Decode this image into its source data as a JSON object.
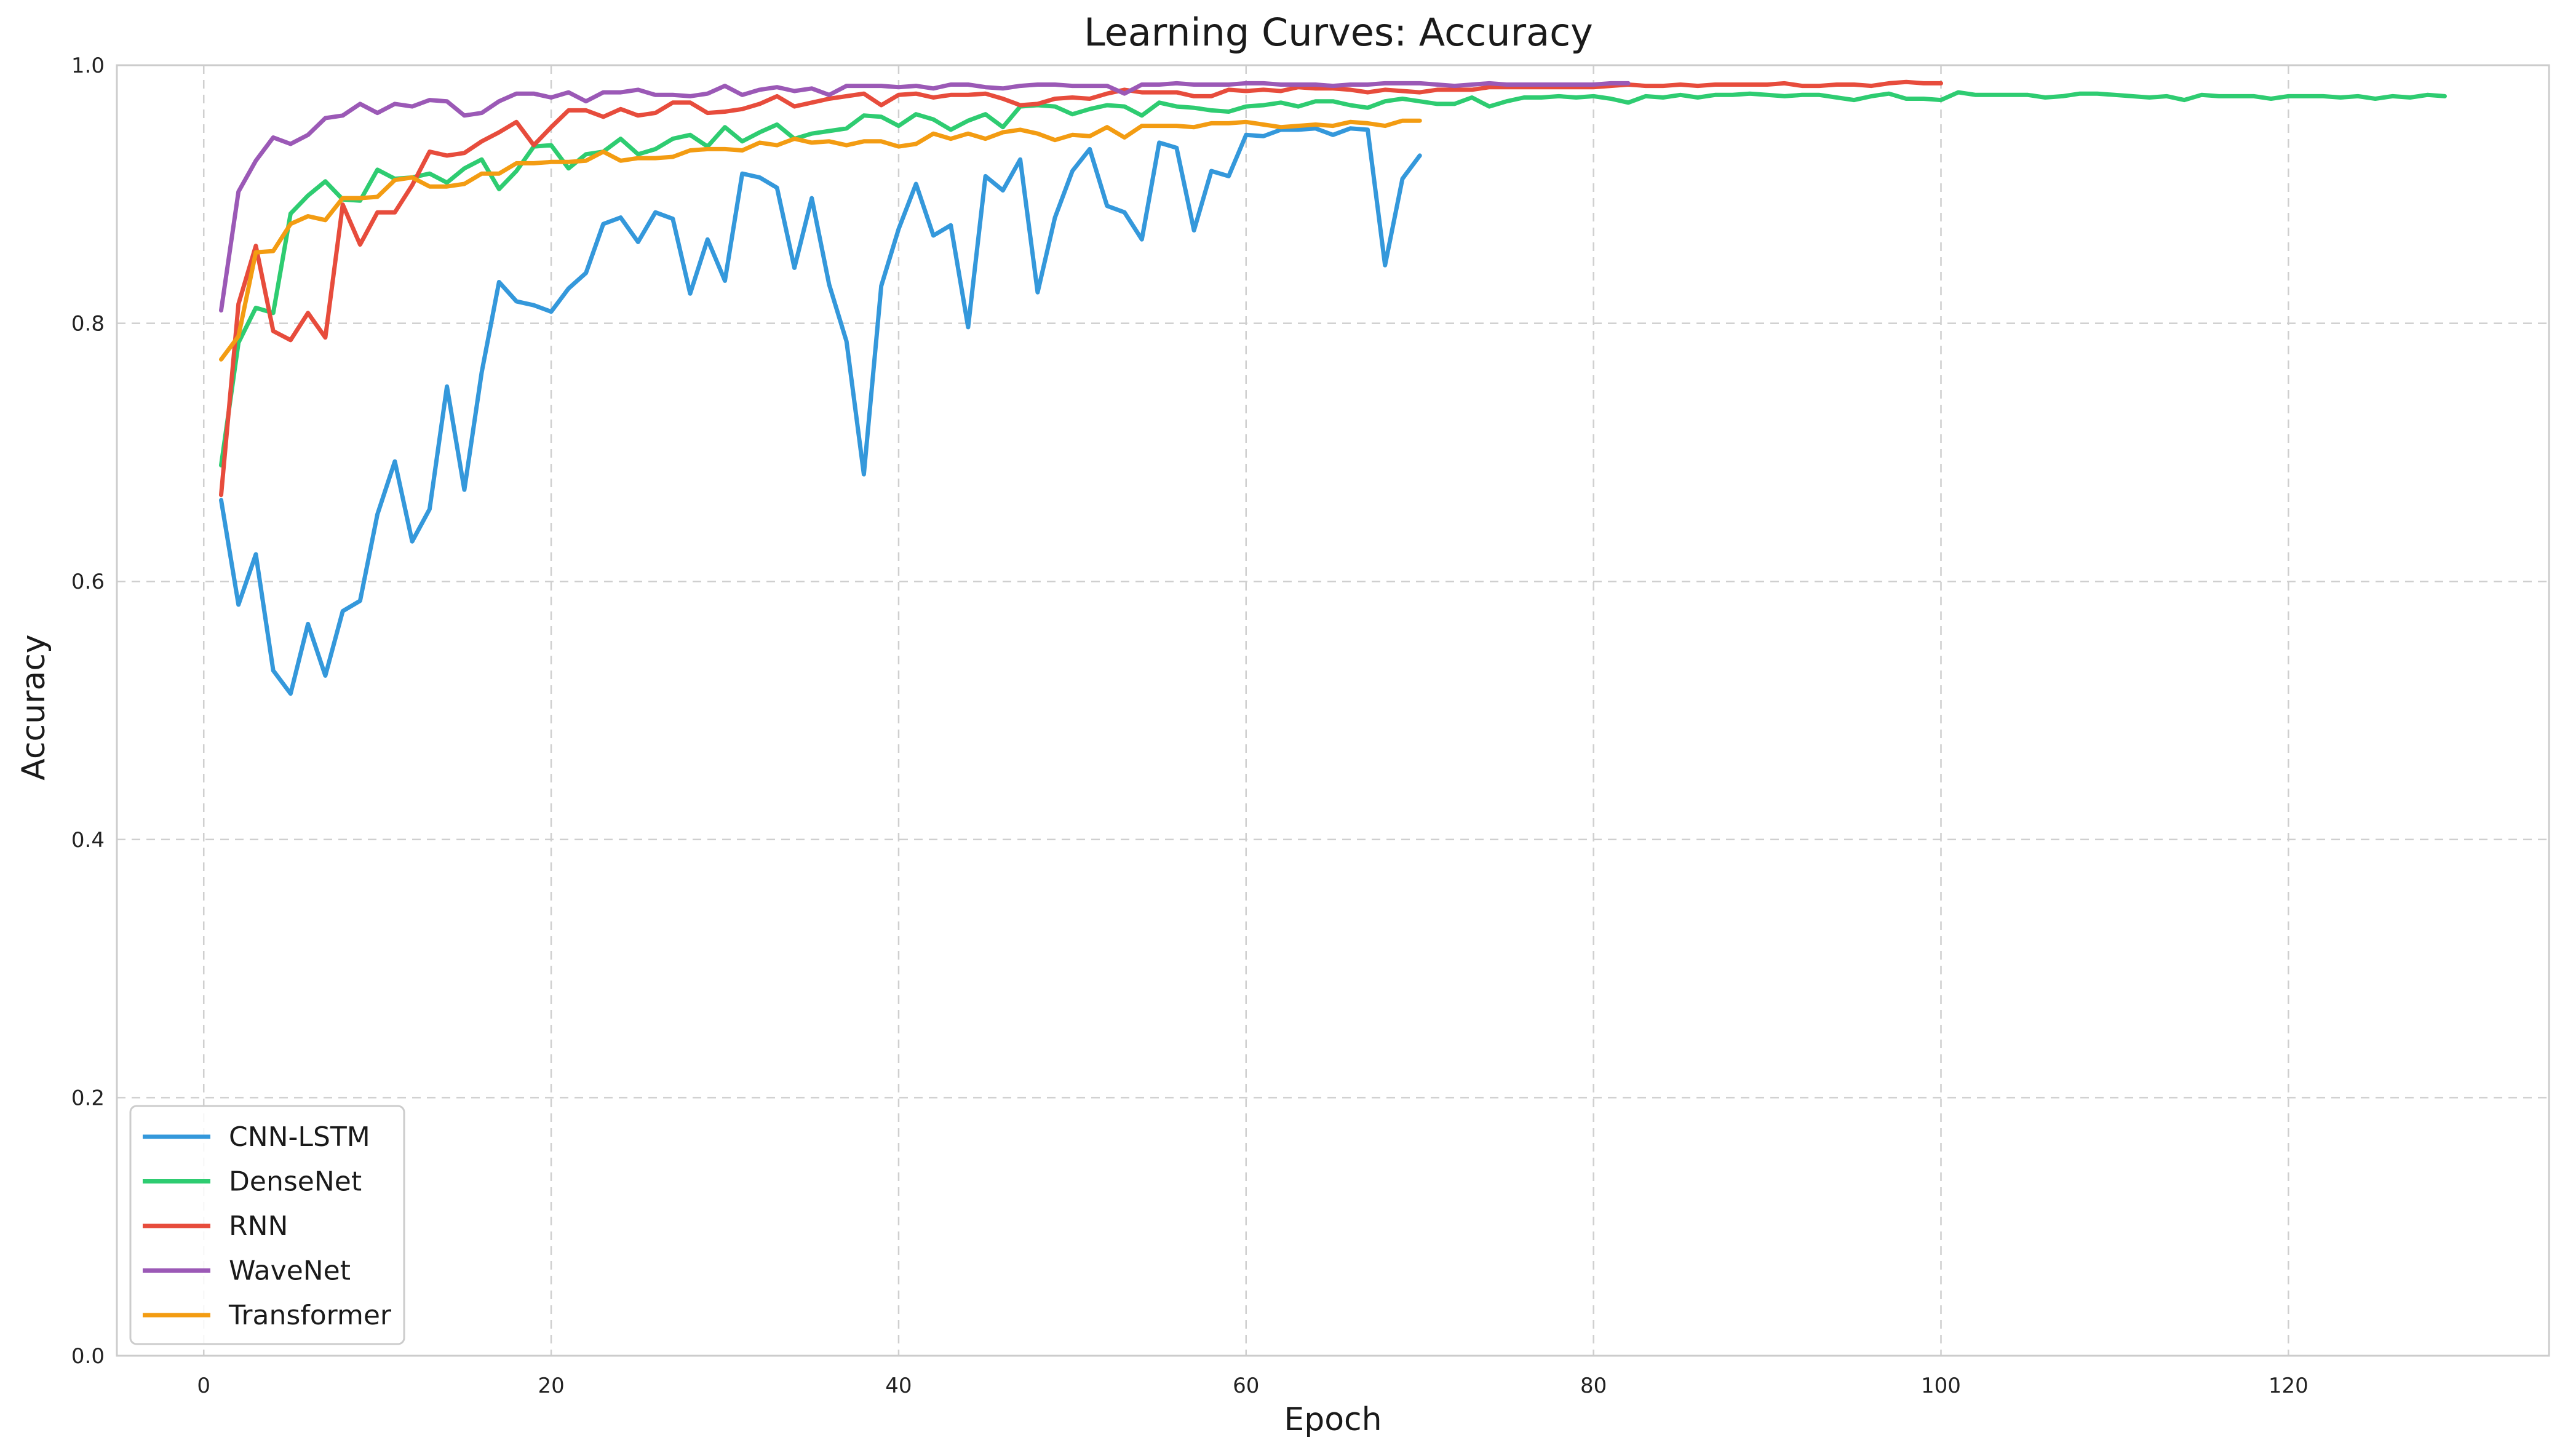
{
  "chart_data": {
    "type": "line",
    "title": "Learning Curves: Accuracy",
    "xlabel": "Epoch",
    "ylabel": "Accuracy",
    "xlim": [
      -5,
      135
    ],
    "ylim": [
      0,
      1.0
    ],
    "xticks": [
      0,
      20,
      40,
      60,
      80,
      100,
      120
    ],
    "yticks": [
      0.0,
      0.2,
      0.4,
      0.6,
      0.8,
      1.0
    ],
    "xtick_labels": [
      "0",
      "20",
      "40",
      "60",
      "80",
      "100",
      "120"
    ],
    "ytick_labels": [
      "0.0",
      "0.2",
      "0.4",
      "0.6",
      "0.8",
      "1.0"
    ],
    "grid": true,
    "legend_position": "lower-left",
    "series": [
      {
        "name": "CNN-LSTM",
        "color": "#3498db",
        "x_start": 1,
        "values": [
          0.663,
          0.582,
          0.621,
          0.531,
          0.513,
          0.567,
          0.527,
          0.577,
          0.585,
          0.652,
          0.693,
          0.631,
          0.656,
          0.751,
          0.671,
          0.762,
          0.832,
          0.817,
          0.814,
          0.809,
          0.827,
          0.839,
          0.877,
          0.882,
          0.863,
          0.886,
          0.881,
          0.823,
          0.865,
          0.833,
          0.916,
          0.913,
          0.905,
          0.843,
          0.897,
          0.83,
          0.786,
          0.683,
          0.829,
          0.873,
          0.908,
          0.868,
          0.876,
          0.797,
          0.914,
          0.903,
          0.927,
          0.824,
          0.882,
          0.918,
          0.935,
          0.891,
          0.886,
          0.865,
          0.94,
          0.936,
          0.872,
          0.918,
          0.914,
          0.946,
          0.945,
          0.95,
          0.95,
          0.951,
          0.946,
          0.951,
          0.95,
          0.845,
          0.912,
          0.93
        ]
      },
      {
        "name": "DenseNet",
        "color": "#2ecc71",
        "x_start": 1,
        "values": [
          0.69,
          0.785,
          0.812,
          0.808,
          0.885,
          0.899,
          0.91,
          0.896,
          0.895,
          0.919,
          0.912,
          0.913,
          0.916,
          0.909,
          0.92,
          0.927,
          0.904,
          0.918,
          0.937,
          0.938,
          0.92,
          0.931,
          0.933,
          0.943,
          0.931,
          0.935,
          0.943,
          0.946,
          0.937,
          0.952,
          0.941,
          0.948,
          0.954,
          0.943,
          0.947,
          0.949,
          0.951,
          0.961,
          0.96,
          0.953,
          0.962,
          0.958,
          0.95,
          0.957,
          0.962,
          0.952,
          0.968,
          0.969,
          0.968,
          0.962,
          0.966,
          0.969,
          0.968,
          0.961,
          0.971,
          0.968,
          0.967,
          0.965,
          0.964,
          0.968,
          0.969,
          0.971,
          0.968,
          0.972,
          0.972,
          0.969,
          0.967,
          0.972,
          0.974,
          0.972,
          0.97,
          0.97,
          0.975,
          0.968,
          0.972,
          0.975,
          0.975,
          0.976,
          0.975,
          0.976,
          0.974,
          0.971,
          0.976,
          0.975,
          0.977,
          0.975,
          0.977,
          0.977,
          0.978,
          0.977,
          0.976,
          0.977,
          0.977,
          0.975,
          0.973,
          0.976,
          0.978,
          0.974,
          0.974,
          0.973,
          0.979,
          0.977,
          0.977,
          0.977,
          0.977,
          0.975,
          0.976,
          0.978,
          0.978,
          0.977,
          0.976,
          0.975,
          0.976,
          0.973,
          0.977,
          0.976,
          0.976,
          0.976,
          0.974,
          0.976,
          0.976,
          0.976,
          0.975,
          0.976,
          0.974,
          0.976,
          0.975,
          0.977,
          0.976
        ]
      },
      {
        "name": "RNN",
        "color": "#e74c3c",
        "x_start": 1,
        "values": [
          0.667,
          0.815,
          0.86,
          0.794,
          0.787,
          0.808,
          0.789,
          0.892,
          0.861,
          0.886,
          0.886,
          0.907,
          0.933,
          0.93,
          0.932,
          0.941,
          0.948,
          0.956,
          0.938,
          0.952,
          0.965,
          0.965,
          0.96,
          0.966,
          0.961,
          0.963,
          0.971,
          0.971,
          0.963,
          0.964,
          0.966,
          0.97,
          0.976,
          0.968,
          0.971,
          0.974,
          0.976,
          0.978,
          0.969,
          0.977,
          0.978,
          0.975,
          0.977,
          0.977,
          0.978,
          0.974,
          0.969,
          0.97,
          0.974,
          0.975,
          0.974,
          0.978,
          0.981,
          0.979,
          0.979,
          0.979,
          0.976,
          0.976,
          0.981,
          0.98,
          0.981,
          0.98,
          0.983,
          0.982,
          0.982,
          0.981,
          0.979,
          0.981,
          0.98,
          0.979,
          0.981,
          0.981,
          0.981,
          0.983,
          0.983,
          0.983,
          0.983,
          0.983,
          0.983,
          0.983,
          0.984,
          0.985,
          0.984,
          0.984,
          0.985,
          0.984,
          0.985,
          0.985,
          0.985,
          0.985,
          0.986,
          0.984,
          0.984,
          0.985,
          0.985,
          0.984,
          0.986,
          0.987,
          0.986,
          0.986
        ]
      },
      {
        "name": "WaveNet",
        "color": "#9b59b6",
        "x_start": 1,
        "values": [
          0.81,
          0.902,
          0.926,
          0.944,
          0.939,
          0.946,
          0.959,
          0.961,
          0.97,
          0.963,
          0.97,
          0.968,
          0.973,
          0.972,
          0.961,
          0.963,
          0.972,
          0.978,
          0.978,
          0.975,
          0.979,
          0.972,
          0.979,
          0.979,
          0.981,
          0.977,
          0.977,
          0.976,
          0.978,
          0.984,
          0.977,
          0.981,
          0.983,
          0.98,
          0.982,
          0.977,
          0.984,
          0.984,
          0.984,
          0.983,
          0.984,
          0.982,
          0.985,
          0.985,
          0.983,
          0.982,
          0.984,
          0.985,
          0.985,
          0.984,
          0.984,
          0.984,
          0.978,
          0.985,
          0.985,
          0.986,
          0.985,
          0.985,
          0.985,
          0.986,
          0.986,
          0.985,
          0.985,
          0.985,
          0.984,
          0.985,
          0.985,
          0.986,
          0.986,
          0.986,
          0.985,
          0.984,
          0.985,
          0.986,
          0.985,
          0.985,
          0.985,
          0.985,
          0.985,
          0.985,
          0.986,
          0.986
        ]
      },
      {
        "name": "Transformer",
        "color": "#f39c12",
        "x_start": 1,
        "values": [
          0.772,
          0.79,
          0.855,
          0.856,
          0.877,
          0.883,
          0.88,
          0.897,
          0.897,
          0.898,
          0.911,
          0.913,
          0.906,
          0.906,
          0.908,
          0.916,
          0.916,
          0.924,
          0.924,
          0.925,
          0.925,
          0.926,
          0.933,
          0.926,
          0.928,
          0.928,
          0.929,
          0.934,
          0.935,
          0.935,
          0.934,
          0.94,
          0.938,
          0.943,
          0.94,
          0.941,
          0.938,
          0.941,
          0.941,
          0.937,
          0.939,
          0.947,
          0.943,
          0.947,
          0.943,
          0.948,
          0.95,
          0.947,
          0.942,
          0.946,
          0.945,
          0.952,
          0.944,
          0.953,
          0.953,
          0.953,
          0.952,
          0.955,
          0.955,
          0.956,
          0.954,
          0.952,
          0.953,
          0.954,
          0.953,
          0.956,
          0.955,
          0.953,
          0.957,
          0.957
        ]
      }
    ]
  }
}
